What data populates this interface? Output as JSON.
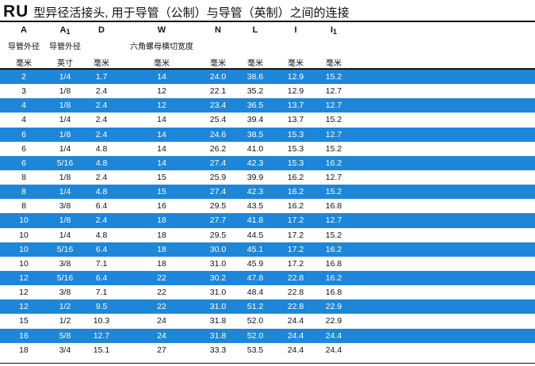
{
  "title": {
    "code": "RU",
    "text": "型异径活接头, 用于导管（公制）与导管（英制）之间的连接"
  },
  "columns": [
    {
      "letter": "A",
      "sub": "",
      "desc": "导管外径",
      "unit": "毫米"
    },
    {
      "letter": "A",
      "sub": "1",
      "desc": "导管外径",
      "unit": "英寸"
    },
    {
      "letter": "D",
      "sub": "",
      "desc": "",
      "unit": "毫米"
    },
    {
      "letter": "W",
      "sub": "",
      "desc": "六角螺母横切宽度",
      "unit": "毫米"
    },
    {
      "letter": "N",
      "sub": "",
      "desc": "",
      "unit": "毫米"
    },
    {
      "letter": "L",
      "sub": "",
      "desc": "",
      "unit": "毫米"
    },
    {
      "letter": "I",
      "sub": "",
      "desc": "",
      "unit": "毫米"
    },
    {
      "letter": "I",
      "sub": "1",
      "desc": "",
      "unit": "毫米"
    }
  ],
  "rows": [
    {
      "highlight": true,
      "cells": [
        "2",
        "1/4",
        "1.7",
        "14",
        "24.0",
        "38.6",
        "12.9",
        "15.2"
      ]
    },
    {
      "highlight": false,
      "cells": [
        "3",
        "1/8",
        "2.4",
        "12",
        "22.1",
        "35.2",
        "12.9",
        "12.7"
      ]
    },
    {
      "highlight": true,
      "cells": [
        "4",
        "1/8",
        "2.4",
        "12",
        "23.4",
        "36.5",
        "13.7",
        "12.7"
      ]
    },
    {
      "highlight": false,
      "cells": [
        "4",
        "1/4",
        "2.4",
        "14",
        "25.4",
        "39.4",
        "13.7",
        "15.2"
      ]
    },
    {
      "highlight": true,
      "cells": [
        "6",
        "1/8",
        "2.4",
        "14",
        "24.6",
        "38.5",
        "15.3",
        "12.7"
      ]
    },
    {
      "highlight": false,
      "cells": [
        "6",
        "1/4",
        "4.8",
        "14",
        "26.2",
        "41.0",
        "15.3",
        "15.2"
      ]
    },
    {
      "highlight": true,
      "cells": [
        "6",
        "5/16",
        "4.8",
        "14",
        "27.4",
        "42.3",
        "15.3",
        "16.2"
      ]
    },
    {
      "highlight": false,
      "cells": [
        "8",
        "1/8",
        "2.4",
        "15",
        "25.9",
        "39.9",
        "16.2",
        "12.7"
      ]
    },
    {
      "highlight": true,
      "cells": [
        "8",
        "1/4",
        "4.8",
        "15",
        "27.4",
        "42.3",
        "16.2",
        "15.2"
      ]
    },
    {
      "highlight": false,
      "cells": [
        "8",
        "3/8",
        "6.4",
        "16",
        "29.5",
        "43.5",
        "16.2",
        "16.8"
      ]
    },
    {
      "highlight": true,
      "cells": [
        "10",
        "1/8",
        "2.4",
        "18",
        "27.7",
        "41.8",
        "17.2",
        "12.7"
      ]
    },
    {
      "highlight": false,
      "cells": [
        "10",
        "1/4",
        "4.8",
        "18",
        "29.5",
        "44.5",
        "17.2",
        "15.2"
      ]
    },
    {
      "highlight": true,
      "cells": [
        "10",
        "5/16",
        "6.4",
        "18",
        "30.0",
        "45.1",
        "17.2",
        "16.2"
      ]
    },
    {
      "highlight": false,
      "cells": [
        "10",
        "3/8",
        "7.1",
        "18",
        "31.0",
        "45.9",
        "17.2",
        "16.8"
      ]
    },
    {
      "highlight": true,
      "cells": [
        "12",
        "5/16",
        "6.4",
        "22",
        "30.2",
        "47.8",
        "22.8",
        "16.2"
      ]
    },
    {
      "highlight": false,
      "cells": [
        "12",
        "3/8",
        "7.1",
        "22",
        "31.0",
        "48.4",
        "22.8",
        "16.8"
      ]
    },
    {
      "highlight": true,
      "cells": [
        "12",
        "1/2",
        "9.5",
        "22",
        "31.0",
        "51.2",
        "22.8",
        "22.9"
      ]
    },
    {
      "highlight": false,
      "cells": [
        "15",
        "1/2",
        "10.3",
        "24",
        "31.8",
        "52.0",
        "24.4",
        "22.9"
      ]
    },
    {
      "highlight": true,
      "cells": [
        "16",
        "5/8",
        "12.7",
        "24",
        "31.8",
        "52.0",
        "24.4",
        "24.4"
      ]
    },
    {
      "highlight": false,
      "cells": [
        "18",
        "3/4",
        "15.1",
        "27",
        "33.3",
        "53.5",
        "24.4",
        "24.4"
      ]
    }
  ],
  "colors": {
    "highlight_row": "#1e86d8",
    "highlight_text": "#ffffff",
    "text": "#111111"
  }
}
